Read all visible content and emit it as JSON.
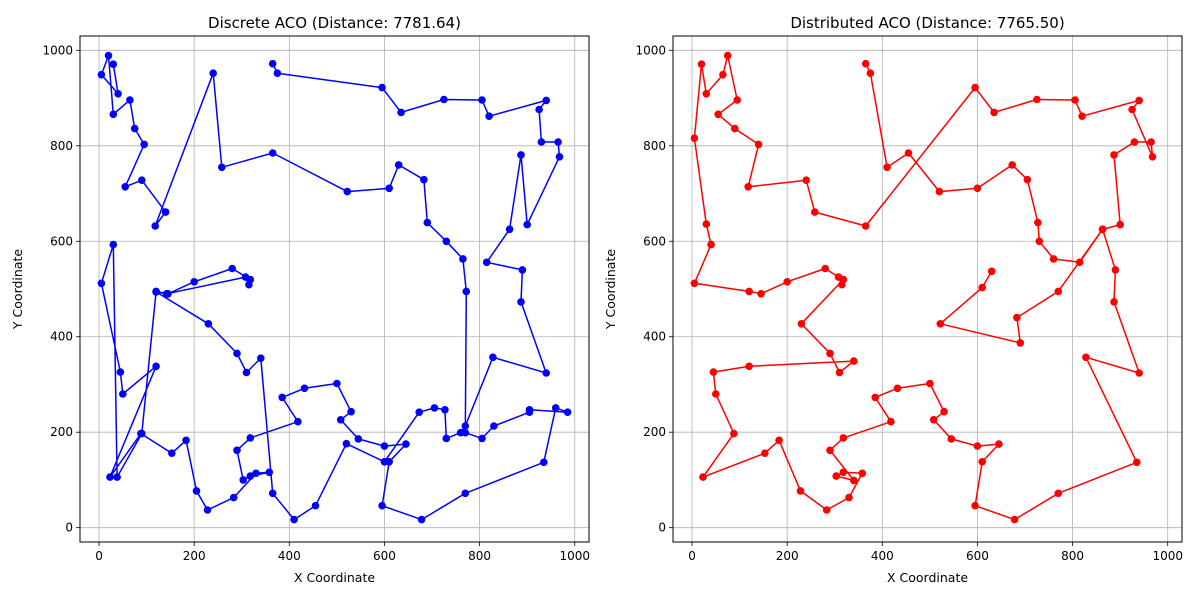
{
  "chart_data": [
    {
      "type": "line",
      "title": "Discrete ACO (Distance: 7781.64)",
      "xlabel": "X Coordinate",
      "ylabel": "Y Coordinate",
      "xlim": [
        -40,
        1030
      ],
      "ylim": [
        -30,
        1030
      ],
      "xticks": [
        "0",
        "200",
        "400",
        "600",
        "800",
        "1000"
      ],
      "yticks": [
        "0",
        "200",
        "400",
        "600",
        "800",
        "1000"
      ],
      "grid": true,
      "color": "#0000ff",
      "series": [
        {
          "x": [
            365,
            375,
            595,
            635,
            725,
            805,
            820,
            940,
            925,
            930,
            965,
            968,
            900,
            887,
            863,
            815,
            890,
            887,
            940,
            828,
            770,
            760,
            730,
            727,
            705,
            673,
            600,
            520,
            455,
            410,
            365,
            340,
            310,
            290,
            230,
            120,
            142,
            308,
            315,
            318,
            280,
            200,
            145,
            120,
            90,
            38,
            30,
            5,
            45,
            50,
            120,
            23,
            88,
            153,
            183,
            205,
            228,
            283,
            330,
            358,
            318,
            303,
            290,
            318,
            418,
            385,
            432,
            500,
            530,
            508,
            545,
            600,
            645,
            610,
            595,
            678,
            770,
            935,
            960,
            985,
            905,
            905,
            830,
            805,
            770,
            772,
            765,
            730,
            690,
            683,
            630,
            610,
            522,
            365,
            258,
            240,
            118,
            140,
            90,
            55,
            95,
            75,
            65,
            30,
            20,
            5,
            40,
            30
          ],
          "y": [
            972,
            952,
            922,
            870,
            897,
            896,
            862,
            895,
            876,
            808,
            808,
            777,
            635,
            781,
            625,
            556,
            540,
            473,
            324,
            357,
            213,
            199,
            187,
            247,
            251,
            242,
            138,
            176,
            46,
            17,
            72,
            355,
            325,
            365,
            427,
            494,
            490,
            525,
            509,
            520,
            543,
            515,
            490,
            495,
            197,
            106,
            593,
            512,
            326,
            280,
            338,
            106,
            197,
            156,
            183,
            77,
            37,
            63,
            114,
            116,
            108,
            100,
            162,
            188,
            222,
            273,
            292,
            302,
            243,
            226,
            186,
            171,
            175,
            138,
            46,
            17,
            72,
            137,
            251,
            242,
            247,
            242,
            213,
            187,
            199,
            495,
            563,
            600,
            639,
            729,
            760,
            711,
            704,
            785,
            755,
            952,
            632,
            661,
            728,
            714,
            803,
            836,
            896,
            866,
            989,
            949,
            909,
            971
          ]
        }
      ]
    },
    {
      "type": "line",
      "title": "Distributed ACO (Distance: 7765.50)",
      "xlabel": "X Coordinate",
      "ylabel": "Y Coordinate",
      "xlim": [
        -40,
        1030
      ],
      "ylim": [
        -30,
        1030
      ],
      "xticks": [
        "0",
        "200",
        "400",
        "600",
        "800",
        "1000"
      ],
      "yticks": [
        "0",
        "200",
        "400",
        "600",
        "800",
        "1000"
      ],
      "grid": true,
      "color": "#ff0000",
      "series": [
        {
          "x": [
            365,
            375,
            410,
            455,
            520,
            600,
            673,
            705,
            727,
            730,
            760,
            815,
            863,
            900,
            887,
            930,
            965,
            968,
            925,
            940,
            820,
            805,
            725,
            635,
            595,
            365,
            258,
            240,
            118,
            140,
            90,
            55,
            95,
            75,
            65,
            30,
            20,
            5,
            30,
            40,
            5,
            120,
            145,
            200,
            280,
            308,
            315,
            318,
            230,
            290,
            310,
            340,
            120,
            45,
            50,
            88,
            23,
            153,
            183,
            228,
            283,
            330,
            358,
            318,
            303,
            340,
            290,
            318,
            418,
            385,
            432,
            500,
            530,
            508,
            545,
            600,
            645,
            610,
            595,
            678,
            770,
            935,
            828,
            940,
            887,
            890,
            863,
            770,
            683,
            690,
            522,
            610,
            630
          ],
          "y": [
            972,
            952,
            755,
            785,
            704,
            711,
            760,
            729,
            639,
            600,
            563,
            556,
            625,
            635,
            781,
            808,
            808,
            777,
            876,
            895,
            862,
            896,
            897,
            870,
            922,
            632,
            661,
            728,
            714,
            803,
            836,
            866,
            896,
            989,
            949,
            909,
            971,
            816,
            636,
            593,
            512,
            495,
            490,
            515,
            543,
            525,
            509,
            520,
            427,
            365,
            325,
            349,
            338,
            326,
            280,
            197,
            106,
            156,
            183,
            77,
            37,
            63,
            114,
            116,
            108,
            99,
            162,
            188,
            222,
            273,
            292,
            302,
            243,
            226,
            186,
            171,
            175,
            138,
            46,
            17,
            72,
            137,
            357,
            324,
            473,
            540,
            625,
            495,
            440,
            387,
            427,
            503,
            537
          ]
        }
      ]
    }
  ]
}
